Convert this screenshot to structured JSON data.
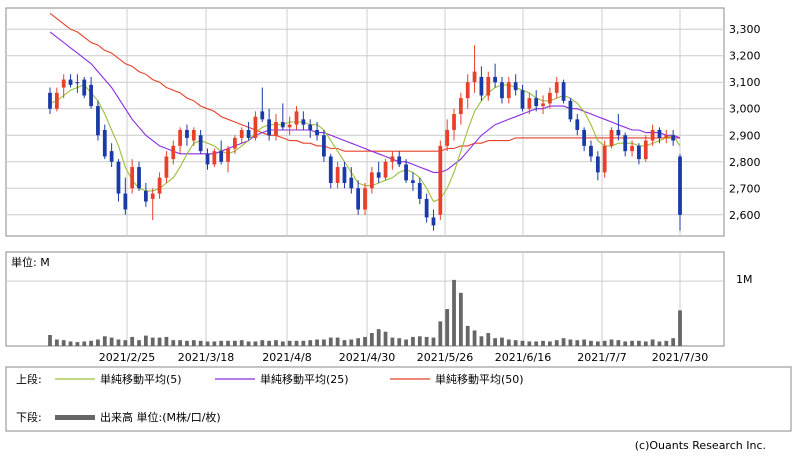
{
  "chart_data": [
    {
      "type": "candlestick",
      "panel": "price",
      "y_ticks": [
        "3,300",
        "3,200",
        "3,100",
        "3,000",
        "2,900",
        "2,800",
        "2,700",
        "2,600"
      ],
      "y_tick_values": [
        3300,
        3200,
        3100,
        3000,
        2900,
        2800,
        2700,
        2600
      ],
      "ylim": [
        2520,
        3380
      ],
      "grid": true,
      "candles": [
        {
          "o": 3060,
          "h": 3080,
          "l": 2980,
          "c": 3000,
          "up": false
        },
        {
          "o": 3000,
          "h": 3080,
          "l": 2990,
          "c": 3060,
          "up": true
        },
        {
          "o": 3080,
          "h": 3130,
          "l": 3040,
          "c": 3110,
          "up": true
        },
        {
          "o": 3110,
          "h": 3130,
          "l": 3080,
          "c": 3090,
          "up": false
        },
        {
          "o": 3100,
          "h": 3130,
          "l": 3060,
          "c": 3100,
          "up": false
        },
        {
          "o": 3110,
          "h": 3120,
          "l": 3040,
          "c": 3050,
          "up": false
        },
        {
          "o": 3090,
          "h": 3120,
          "l": 3000,
          "c": 3010,
          "up": false
        },
        {
          "o": 3010,
          "h": 3030,
          "l": 2880,
          "c": 2900,
          "up": false
        },
        {
          "o": 2920,
          "h": 2940,
          "l": 2810,
          "c": 2820,
          "up": false
        },
        {
          "o": 2840,
          "h": 2870,
          "l": 2780,
          "c": 2800,
          "up": false
        },
        {
          "o": 2800,
          "h": 2810,
          "l": 2650,
          "c": 2680,
          "up": false
        },
        {
          "o": 2680,
          "h": 2740,
          "l": 2600,
          "c": 2620,
          "up": false
        },
        {
          "o": 2700,
          "h": 2810,
          "l": 2680,
          "c": 2780,
          "up": true
        },
        {
          "o": 2780,
          "h": 2800,
          "l": 2690,
          "c": 2700,
          "up": false
        },
        {
          "o": 2690,
          "h": 2720,
          "l": 2630,
          "c": 2650,
          "up": false
        },
        {
          "o": 2660,
          "h": 2700,
          "l": 2580,
          "c": 2680,
          "up": true
        },
        {
          "o": 2680,
          "h": 2760,
          "l": 2660,
          "c": 2740,
          "up": true
        },
        {
          "o": 2740,
          "h": 2840,
          "l": 2720,
          "c": 2820,
          "up": true
        },
        {
          "o": 2810,
          "h": 2880,
          "l": 2790,
          "c": 2860,
          "up": true
        },
        {
          "o": 2860,
          "h": 2930,
          "l": 2830,
          "c": 2920,
          "up": true
        },
        {
          "o": 2920,
          "h": 2940,
          "l": 2860,
          "c": 2890,
          "up": false
        },
        {
          "o": 2880,
          "h": 2930,
          "l": 2860,
          "c": 2920,
          "up": true
        },
        {
          "o": 2900,
          "h": 2920,
          "l": 2830,
          "c": 2840,
          "up": false
        },
        {
          "o": 2830,
          "h": 2850,
          "l": 2770,
          "c": 2790,
          "up": false
        },
        {
          "o": 2790,
          "h": 2850,
          "l": 2780,
          "c": 2840,
          "up": true
        },
        {
          "o": 2840,
          "h": 2880,
          "l": 2790,
          "c": 2800,
          "up": false
        },
        {
          "o": 2800,
          "h": 2860,
          "l": 2760,
          "c": 2850,
          "up": true
        },
        {
          "o": 2850,
          "h": 2900,
          "l": 2830,
          "c": 2890,
          "up": true
        },
        {
          "o": 2890,
          "h": 2930,
          "l": 2870,
          "c": 2920,
          "up": true
        },
        {
          "o": 2920,
          "h": 2950,
          "l": 2880,
          "c": 2890,
          "up": false
        },
        {
          "o": 2890,
          "h": 2990,
          "l": 2880,
          "c": 2970,
          "up": true
        },
        {
          "o": 2990,
          "h": 3080,
          "l": 2950,
          "c": 2960,
          "up": false
        },
        {
          "o": 2960,
          "h": 3000,
          "l": 2880,
          "c": 2900,
          "up": false
        },
        {
          "o": 2900,
          "h": 2980,
          "l": 2880,
          "c": 2950,
          "up": true
        },
        {
          "o": 2950,
          "h": 3020,
          "l": 2920,
          "c": 2930,
          "up": false
        },
        {
          "o": 2930,
          "h": 2970,
          "l": 2900,
          "c": 2940,
          "up": true
        },
        {
          "o": 2940,
          "h": 3010,
          "l": 2920,
          "c": 2990,
          "up": true
        },
        {
          "o": 2960,
          "h": 2990,
          "l": 2920,
          "c": 2940,
          "up": false
        },
        {
          "o": 2940,
          "h": 2960,
          "l": 2890,
          "c": 2920,
          "up": false
        },
        {
          "o": 2920,
          "h": 2950,
          "l": 2880,
          "c": 2900,
          "up": false
        },
        {
          "o": 2900,
          "h": 2920,
          "l": 2800,
          "c": 2820,
          "up": false
        },
        {
          "o": 2820,
          "h": 2830,
          "l": 2700,
          "c": 2720,
          "up": false
        },
        {
          "o": 2720,
          "h": 2800,
          "l": 2700,
          "c": 2780,
          "up": true
        },
        {
          "o": 2780,
          "h": 2800,
          "l": 2700,
          "c": 2720,
          "up": false
        },
        {
          "o": 2740,
          "h": 2780,
          "l": 2680,
          "c": 2700,
          "up": false
        },
        {
          "o": 2700,
          "h": 2730,
          "l": 2600,
          "c": 2620,
          "up": false
        },
        {
          "o": 2620,
          "h": 2720,
          "l": 2600,
          "c": 2700,
          "up": true
        },
        {
          "o": 2700,
          "h": 2780,
          "l": 2680,
          "c": 2760,
          "up": true
        },
        {
          "o": 2760,
          "h": 2800,
          "l": 2720,
          "c": 2740,
          "up": false
        },
        {
          "o": 2740,
          "h": 2810,
          "l": 2730,
          "c": 2800,
          "up": true
        },
        {
          "o": 2800,
          "h": 2840,
          "l": 2770,
          "c": 2820,
          "up": true
        },
        {
          "o": 2820,
          "h": 2840,
          "l": 2780,
          "c": 2790,
          "up": false
        },
        {
          "o": 2790,
          "h": 2810,
          "l": 2720,
          "c": 2730,
          "up": false
        },
        {
          "o": 2730,
          "h": 2760,
          "l": 2690,
          "c": 2720,
          "up": false
        },
        {
          "o": 2720,
          "h": 2740,
          "l": 2640,
          "c": 2660,
          "up": false
        },
        {
          "o": 2660,
          "h": 2680,
          "l": 2570,
          "c": 2590,
          "up": false
        },
        {
          "o": 2590,
          "h": 2620,
          "l": 2540,
          "c": 2560,
          "up": false
        },
        {
          "o": 2600,
          "h": 2880,
          "l": 2580,
          "c": 2860,
          "up": true
        },
        {
          "o": 2860,
          "h": 2960,
          "l": 2840,
          "c": 2920,
          "up": true
        },
        {
          "o": 2920,
          "h": 3000,
          "l": 2880,
          "c": 2980,
          "up": true
        },
        {
          "o": 2980,
          "h": 3060,
          "l": 2940,
          "c": 3040,
          "up": true
        },
        {
          "o": 3040,
          "h": 3130,
          "l": 3000,
          "c": 3100,
          "up": true
        },
        {
          "o": 3100,
          "h": 3240,
          "l": 3060,
          "c": 3140,
          "up": true
        },
        {
          "o": 3120,
          "h": 3160,
          "l": 3030,
          "c": 3050,
          "up": false
        },
        {
          "o": 3050,
          "h": 3140,
          "l": 3030,
          "c": 3120,
          "up": true
        },
        {
          "o": 3120,
          "h": 3170,
          "l": 3080,
          "c": 3100,
          "up": false
        },
        {
          "o": 3100,
          "h": 3120,
          "l": 3020,
          "c": 3040,
          "up": false
        },
        {
          "o": 3040,
          "h": 3120,
          "l": 3020,
          "c": 3100,
          "up": true
        },
        {
          "o": 3100,
          "h": 3130,
          "l": 3050,
          "c": 3070,
          "up": false
        },
        {
          "o": 3070,
          "h": 3090,
          "l": 2990,
          "c": 3000,
          "up": false
        },
        {
          "o": 3000,
          "h": 3060,
          "l": 2980,
          "c": 3040,
          "up": true
        },
        {
          "o": 3040,
          "h": 3070,
          "l": 2990,
          "c": 3010,
          "up": false
        },
        {
          "o": 3010,
          "h": 3050,
          "l": 2980,
          "c": 3020,
          "up": true
        },
        {
          "o": 3020,
          "h": 3080,
          "l": 3000,
          "c": 3060,
          "up": true
        },
        {
          "o": 3060,
          "h": 3120,
          "l": 3040,
          "c": 3100,
          "up": true
        },
        {
          "o": 3100,
          "h": 3110,
          "l": 3020,
          "c": 3030,
          "up": false
        },
        {
          "o": 3030,
          "h": 3040,
          "l": 2950,
          "c": 2960,
          "up": false
        },
        {
          "o": 2960,
          "h": 2980,
          "l": 2900,
          "c": 2920,
          "up": false
        },
        {
          "o": 2920,
          "h": 2930,
          "l": 2840,
          "c": 2860,
          "up": false
        },
        {
          "o": 2860,
          "h": 2880,
          "l": 2800,
          "c": 2820,
          "up": false
        },
        {
          "o": 2820,
          "h": 2840,
          "l": 2730,
          "c": 2760,
          "up": false
        },
        {
          "o": 2760,
          "h": 2880,
          "l": 2740,
          "c": 2860,
          "up": true
        },
        {
          "o": 2860,
          "h": 2930,
          "l": 2850,
          "c": 2920,
          "up": true
        },
        {
          "o": 2920,
          "h": 2980,
          "l": 2880,
          "c": 2900,
          "up": false
        },
        {
          "o": 2900,
          "h": 2910,
          "l": 2820,
          "c": 2840,
          "up": false
        },
        {
          "o": 2840,
          "h": 2880,
          "l": 2820,
          "c": 2860,
          "up": true
        },
        {
          "o": 2860,
          "h": 2870,
          "l": 2790,
          "c": 2810,
          "up": false
        },
        {
          "o": 2810,
          "h": 2900,
          "l": 2800,
          "c": 2880,
          "up": true
        },
        {
          "o": 2880,
          "h": 2940,
          "l": 2860,
          "c": 2920,
          "up": true
        },
        {
          "o": 2920,
          "h": 2930,
          "l": 2870,
          "c": 2890,
          "up": false
        },
        {
          "o": 2890,
          "h": 2920,
          "l": 2870,
          "c": 2900,
          "up": true
        },
        {
          "o": 2900,
          "h": 2920,
          "l": 2860,
          "c": 2880,
          "up": false
        },
        {
          "o": 2820,
          "h": 2830,
          "l": 2540,
          "c": 2600,
          "up": false
        }
      ],
      "ma5": [
        3020,
        3030,
        3050,
        3070,
        3080,
        3090,
        3060,
        3030,
        2980,
        2920,
        2860,
        2780,
        2730,
        2700,
        2690,
        2690,
        2700,
        2720,
        2740,
        2780,
        2830,
        2870,
        2880,
        2870,
        2860,
        2840,
        2830,
        2840,
        2860,
        2880,
        2910,
        2930,
        2940,
        2940,
        2940,
        2950,
        2950,
        2950,
        2940,
        2940,
        2920,
        2880,
        2840,
        2800,
        2760,
        2720,
        2710,
        2710,
        2720,
        2730,
        2740,
        2760,
        2770,
        2760,
        2740,
        2700,
        2650,
        2660,
        2700,
        2760,
        2840,
        2920,
        2990,
        3030,
        3060,
        3080,
        3090,
        3090,
        3080,
        3070,
        3060,
        3040,
        3030,
        3030,
        3040,
        3050,
        3040,
        3020,
        2990,
        2940,
        2880,
        2860,
        2860,
        2870,
        2870,
        2870,
        2860,
        2860,
        2870,
        2880,
        2890,
        2900,
        2860
      ],
      "ma25": [
        3290,
        3270,
        3250,
        3230,
        3210,
        3190,
        3170,
        3140,
        3110,
        3080,
        3040,
        3000,
        2960,
        2930,
        2900,
        2880,
        2860,
        2850,
        2840,
        2830,
        2830,
        2830,
        2830,
        2830,
        2830,
        2840,
        2850,
        2860,
        2870,
        2880,
        2900,
        2910,
        2920,
        2920,
        2920,
        2920,
        2920,
        2920,
        2920,
        2910,
        2910,
        2900,
        2890,
        2880,
        2870,
        2860,
        2850,
        2840,
        2830,
        2820,
        2810,
        2800,
        2800,
        2790,
        2780,
        2770,
        2760,
        2760,
        2770,
        2790,
        2810,
        2840,
        2870,
        2900,
        2920,
        2940,
        2950,
        2960,
        2970,
        2980,
        2990,
        3000,
        3000,
        3010,
        3010,
        3010,
        3000,
        3000,
        2990,
        2980,
        2970,
        2960,
        2950,
        2940,
        2930,
        2920,
        2920,
        2910,
        2910,
        2910,
        2900,
        2900,
        2890
      ],
      "ma50": [
        3360,
        3340,
        3320,
        3300,
        3290,
        3270,
        3250,
        3240,
        3220,
        3210,
        3190,
        3170,
        3160,
        3140,
        3130,
        3110,
        3100,
        3080,
        3070,
        3060,
        3040,
        3030,
        3010,
        3000,
        2990,
        2970,
        2960,
        2950,
        2940,
        2930,
        2920,
        2910,
        2900,
        2900,
        2890,
        2880,
        2880,
        2870,
        2870,
        2860,
        2860,
        2850,
        2850,
        2840,
        2840,
        2840,
        2840,
        2840,
        2840,
        2840,
        2840,
        2840,
        2840,
        2840,
        2840,
        2840,
        2840,
        2840,
        2850,
        2850,
        2860,
        2860,
        2870,
        2870,
        2880,
        2880,
        2880,
        2880,
        2890,
        2890,
        2890,
        2890,
        2890,
        2890,
        2890,
        2890,
        2890,
        2890,
        2890,
        2890,
        2890,
        2890,
        2890,
        2890,
        2890,
        2890,
        2890,
        2890,
        2890,
        2890,
        2890,
        2890,
        2890
      ]
    },
    {
      "type": "bar",
      "panel": "volume",
      "y_ticks": [
        "1M"
      ],
      "y_tick_values": [
        1.0
      ],
      "ylim": [
        0,
        1.45
      ],
      "unit_label": "単位: M",
      "values": [
        0.17,
        0.1,
        0.09,
        0.07,
        0.06,
        0.07,
        0.08,
        0.1,
        0.15,
        0.13,
        0.1,
        0.09,
        0.14,
        0.09,
        0.16,
        0.13,
        0.13,
        0.14,
        0.09,
        0.09,
        0.08,
        0.09,
        0.08,
        0.07,
        0.07,
        0.08,
        0.08,
        0.08,
        0.09,
        0.07,
        0.07,
        0.09,
        0.08,
        0.09,
        0.07,
        0.08,
        0.08,
        0.08,
        0.09,
        0.1,
        0.1,
        0.13,
        0.13,
        0.09,
        0.1,
        0.12,
        0.14,
        0.2,
        0.26,
        0.22,
        0.13,
        0.12,
        0.1,
        0.14,
        0.15,
        0.14,
        0.13,
        0.38,
        0.57,
        1.02,
        0.82,
        0.31,
        0.24,
        0.15,
        0.2,
        0.12,
        0.13,
        0.1,
        0.09,
        0.08,
        0.07,
        0.07,
        0.08,
        0.07,
        0.09,
        0.12,
        0.1,
        0.09,
        0.1,
        0.08,
        0.07,
        0.08,
        0.1,
        0.09,
        0.07,
        0.08,
        0.08,
        0.07,
        0.1,
        0.07,
        0.08,
        0.12,
        0.55
      ]
    }
  ],
  "x_labels": [
    "2021/2/25",
    "2021/3/18",
    "2021/4/8",
    "2021/4/30",
    "2021/5/26",
    "2021/6/16",
    "2021/7/7",
    "2021/7/30"
  ],
  "legend": {
    "upper_label": "上段:",
    "lower_label": "下段:",
    "ma5_label": "単純移動平均(5)",
    "ma25_label": "単純移動平均(25)",
    "ma50_label": "単純移動平均(50)",
    "volume_label": "出来高 単位:(M株/口/枚)"
  },
  "credit": "(c)Ouants Research Inc.",
  "colors": {
    "up": "#e8402a",
    "down": "#1a3aa8",
    "ma5": "#9bbf3a",
    "ma25": "#8a2be2",
    "ma50": "#e8402a",
    "volume": "#666666",
    "grid": "#cccccc"
  }
}
